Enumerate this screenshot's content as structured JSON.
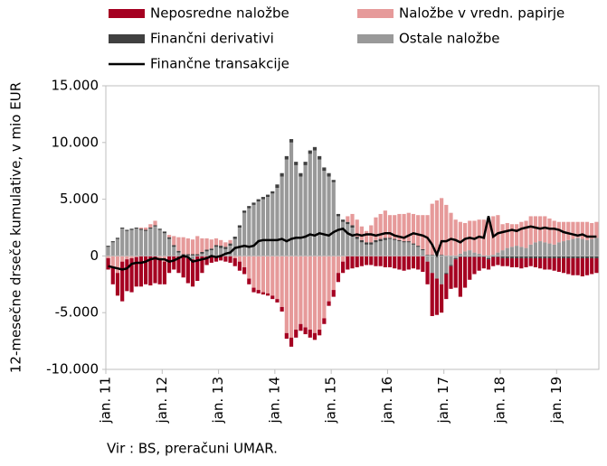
{
  "chart_data": {
    "type": "bar",
    "y_label": "12-mesečne drseče kumulative, v mio EUR",
    "source": "Vir : BS, preračuni UMAR.",
    "ylim": [
      -10000,
      15000
    ],
    "yticks": [
      {
        "value": 15000,
        "label": "15.000"
      },
      {
        "value": 10000,
        "label": "10.000"
      },
      {
        "value": 5000,
        "label": "5.000"
      },
      0,
      {
        "value": -5000,
        "label": "-5.000"
      },
      {
        "value": -10000,
        "label": "-10.000"
      }
    ],
    "legend": "top",
    "categories": [
      "jan. 11",
      null,
      null,
      null,
      null,
      null,
      null,
      null,
      null,
      null,
      null,
      null,
      "jan. 12",
      null,
      null,
      null,
      null,
      null,
      null,
      null,
      null,
      null,
      null,
      null,
      "jan. 13",
      null,
      null,
      null,
      null,
      null,
      null,
      null,
      null,
      null,
      null,
      null,
      "jan. 14",
      null,
      null,
      null,
      null,
      null,
      null,
      null,
      null,
      null,
      null,
      null,
      "jan. 15",
      null,
      null,
      null,
      null,
      null,
      null,
      null,
      null,
      null,
      null,
      null,
      "jan. 16",
      null,
      null,
      null,
      null,
      null,
      null,
      null,
      null,
      null,
      null,
      null,
      "jan. 17",
      null,
      null,
      null,
      null,
      null,
      null,
      null,
      null,
      null,
      null,
      null,
      "jan. 18",
      null,
      null,
      null,
      null,
      null,
      null,
      null,
      null,
      null,
      null,
      null,
      "jan. 19",
      null,
      null,
      null,
      null,
      null,
      null,
      null,
      null
    ],
    "series": [
      {
        "name": "Neposredne naložbe",
        "color": "#a50021",
        "values": [
          -1000,
          -1500,
          -2000,
          -3500,
          -2800,
          -3000,
          -2600,
          -2700,
          -2500,
          -2600,
          -2400,
          -2200,
          -2000,
          -1500,
          -1200,
          -1500,
          -1800,
          -2200,
          -2400,
          -2200,
          -1500,
          -800,
          -600,
          -500,
          -400,
          -500,
          -600,
          -700,
          -800,
          -600,
          -500,
          -400,
          -300,
          -200,
          -200,
          -300,
          -300,
          -400,
          -500,
          -800,
          -700,
          -600,
          -600,
          -700,
          -600,
          -500,
          -500,
          -400,
          -600,
          -800,
          -1000,
          -1200,
          -1100,
          -1000,
          -900,
          -800,
          -800,
          -900,
          -900,
          -1000,
          -1000,
          -1100,
          -1200,
          -1300,
          -1200,
          -1100,
          -1200,
          -1400,
          -2000,
          -3800,
          -3200,
          -2500,
          -2200,
          -2000,
          -2500,
          -3500,
          -2700,
          -2000,
          -1500,
          -1200,
          -1000,
          -900,
          -800,
          -700,
          -700,
          -700,
          -800,
          -800,
          -900,
          -800,
          -700,
          -800,
          -900,
          -1000,
          -1000,
          -1100,
          -1200,
          -1300,
          -1400,
          -1500,
          -1500,
          -1600,
          -1500,
          -1400,
          -1300
        ]
      },
      {
        "name": "Naložbe v vredn. papirje",
        "color": "#e69a9a",
        "values": [
          -200,
          -1000,
          -1500,
          -500,
          -300,
          -200,
          -100,
          100,
          200,
          300,
          400,
          -300,
          -500,
          200,
          800,
          1200,
          1500,
          1400,
          1300,
          1600,
          1200,
          1000,
          800,
          600,
          500,
          400,
          300,
          -200,
          -500,
          -1000,
          -2000,
          -2800,
          -3000,
          -3200,
          -3300,
          -3500,
          -3800,
          -4500,
          -6800,
          -7200,
          -6500,
          -6000,
          -6300,
          -6500,
          -6800,
          -6500,
          -5500,
          -4000,
          -3000,
          -1500,
          -500,
          500,
          1000,
          1500,
          1200,
          1000,
          1500,
          2000,
          2200,
          2400,
          2000,
          2100,
          2300,
          2400,
          2500,
          2600,
          2700,
          3000,
          3500,
          4500,
          4800,
          5000,
          4500,
          3800,
          3200,
          2800,
          2500,
          2600,
          2800,
          3000,
          3200,
          3300,
          3400,
          3300,
          2300,
          2200,
          2000,
          1900,
          2200,
          2400,
          2500,
          2300,
          2200,
          2300,
          2200,
          2100,
          1800,
          1700,
          1600,
          1500,
          1400,
          1500,
          1600,
          1400,
          1400
        ]
      },
      {
        "name": "Finančni derivativi",
        "color": "#404040",
        "values": [
          100,
          100,
          100,
          100,
          100,
          100,
          100,
          100,
          100,
          100,
          100,
          100,
          150,
          150,
          150,
          150,
          150,
          150,
          150,
          150,
          150,
          150,
          150,
          150,
          200,
          200,
          200,
          200,
          200,
          200,
          200,
          200,
          200,
          200,
          200,
          200,
          300,
          300,
          300,
          300,
          300,
          300,
          300,
          300,
          300,
          300,
          300,
          300,
          200,
          200,
          200,
          200,
          200,
          200,
          200,
          200,
          200,
          200,
          200,
          200,
          100,
          100,
          100,
          100,
          100,
          100,
          100,
          100,
          100,
          100,
          100,
          100,
          -100,
          -100,
          -100,
          -100,
          -100,
          -100,
          -100,
          -100,
          -100,
          -100,
          -100,
          -100,
          -200,
          -200,
          -200,
          -200,
          -200,
          -200,
          -200,
          -200,
          -200,
          -200,
          -200,
          -200,
          -200,
          -200,
          -200,
          -200,
          -200,
          -200,
          -200,
          -200,
          -200
        ]
      },
      {
        "name": "Ostale naložbe",
        "color": "#999999",
        "values": [
          800,
          1200,
          1500,
          2400,
          2200,
          2300,
          2400,
          2300,
          2200,
          2400,
          2600,
          2300,
          2000,
          1500,
          800,
          300,
          -100,
          -200,
          -300,
          0,
          200,
          400,
          500,
          800,
          700,
          600,
          900,
          1500,
          2500,
          3800,
          4200,
          4500,
          4800,
          5000,
          5200,
          5500,
          6000,
          7000,
          8500,
          10000,
          8000,
          7000,
          8000,
          9000,
          9300,
          8500,
          7500,
          7000,
          6500,
          3500,
          3000,
          2800,
          2500,
          1500,
          1200,
          1000,
          1000,
          1200,
          1300,
          1400,
          1500,
          1400,
          1300,
          1200,
          1200,
          1000,
          800,
          500,
          -500,
          -1500,
          -2000,
          -2500,
          -1500,
          -800,
          -200,
          200,
          400,
          500,
          300,
          200,
          0,
          -200,
          100,
          300,
          500,
          700,
          800,
          900,
          800,
          700,
          1000,
          1200,
          1300,
          1200,
          1100,
          1000,
          1200,
          1300,
          1400,
          1500,
          1600,
          1500,
          1400,
          1500,
          1600
        ]
      },
      {
        "name": "Finančne transakcije",
        "color": "#000000",
        "type": "line",
        "values": [
          -900,
          -1000,
          -1100,
          -1200,
          -1100,
          -700,
          -600,
          -600,
          -500,
          -300,
          -200,
          -300,
          -300,
          -500,
          -400,
          -200,
          0,
          -100,
          -500,
          -400,
          -300,
          -200,
          0,
          -100,
          0,
          200,
          300,
          700,
          800,
          900,
          800,
          900,
          1300,
          1400,
          1400,
          1400,
          1400,
          1500,
          1300,
          1500,
          1600,
          1600,
          1700,
          1900,
          1800,
          2000,
          1900,
          1800,
          2100,
          2300,
          2400,
          2000,
          1800,
          1900,
          1800,
          1900,
          1900,
          1800,
          1900,
          2000,
          2000,
          1800,
          1700,
          1600,
          1800,
          2000,
          1900,
          1800,
          1600,
          1000,
          100,
          1300,
          1300,
          1500,
          1400,
          1200,
          1500,
          1600,
          1500,
          1700,
          1600,
          3500,
          1700,
          2000,
          2100,
          2200,
          2300,
          2200,
          2400,
          2500,
          2600,
          2500,
          2400,
          2500,
          2400,
          2400,
          2300,
          2100,
          2000,
          1900,
          1800,
          1900,
          1700,
          1700,
          1700
        ]
      }
    ]
  }
}
